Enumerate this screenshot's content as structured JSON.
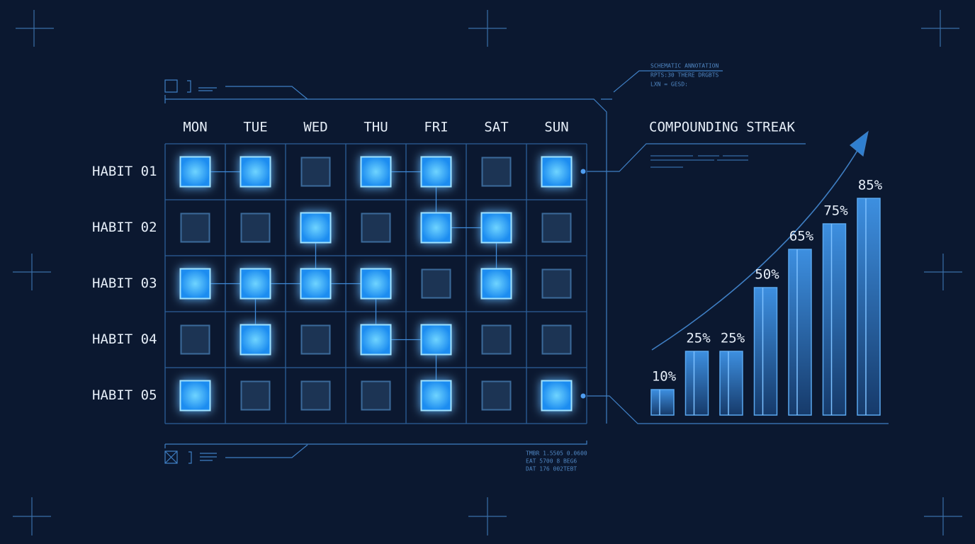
{
  "days": [
    "MON",
    "TUE",
    "WED",
    "THU",
    "FRI",
    "SAT",
    "SUN"
  ],
  "habits": [
    "HABIT 01",
    "HABIT 02",
    "HABIT 03",
    "HABIT 04",
    "HABIT 05"
  ],
  "grid": [
    [
      1,
      1,
      0,
      1,
      1,
      0,
      1
    ],
    [
      0,
      0,
      1,
      0,
      1,
      1,
      0
    ],
    [
      1,
      1,
      1,
      1,
      0,
      1,
      0
    ],
    [
      0,
      1,
      0,
      1,
      1,
      0,
      0
    ],
    [
      1,
      0,
      0,
      0,
      1,
      0,
      1
    ]
  ],
  "annotation": [
    "SCHEMATIC ANNOTATION",
    "RPTS:30 THERE DRGBTS",
    "LXN = GESD:"
  ],
  "readout": [
    "TMBR 1.5505 0.0600",
    "EAT  5700 8 BEG6",
    "DAT  176 002TEBT"
  ],
  "chart_data": {
    "type": "bar",
    "title": "COMPOUNDING STREAK",
    "values": [
      10,
      25,
      25,
      50,
      65,
      75,
      85
    ],
    "value_labels": [
      "10%",
      "25%",
      "25%",
      "50%",
      "65%",
      "75%",
      "85%"
    ],
    "color": "#2f7fd0"
  }
}
